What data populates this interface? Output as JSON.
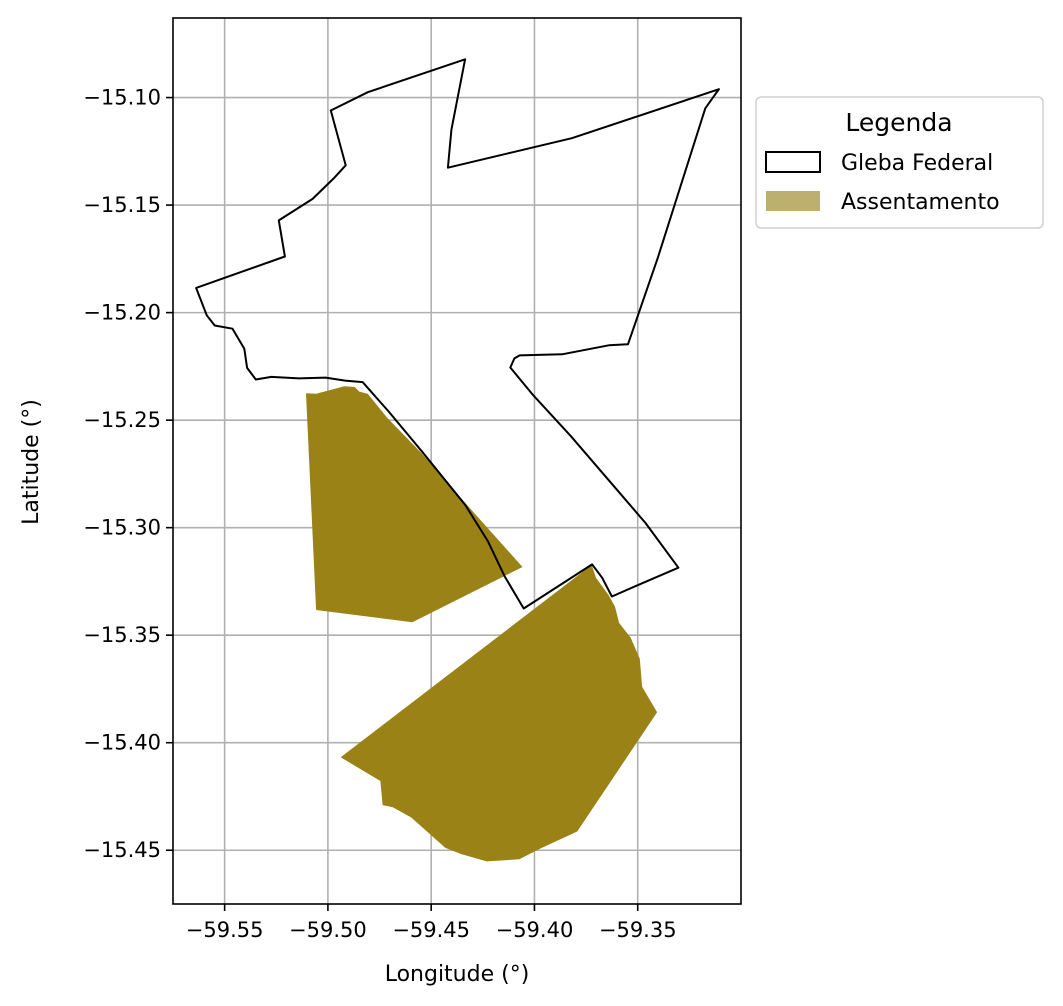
{
  "chart_data": {
    "type": "map",
    "xlabel": "Longitude (°)",
    "ylabel": "Latitude (°)",
    "xlim": [
      -59.575,
      -59.3
    ],
    "ylim": [
      -15.475,
      -15.063
    ],
    "xticks": [
      -59.55,
      -59.5,
      -59.45,
      -59.4,
      -59.35
    ],
    "xtick_labels": [
      "−59.55",
      "−59.50",
      "−59.45",
      "−59.40",
      "−59.35"
    ],
    "yticks": [
      -15.1,
      -15.15,
      -15.2,
      -15.25,
      -15.3,
      -15.35,
      -15.4,
      -15.45
    ],
    "ytick_labels": [
      "−15.10",
      "−15.15",
      "−15.20",
      "−15.25",
      "−15.30",
      "−15.35",
      "−15.40",
      "−15.45"
    ],
    "grid": true,
    "legend": {
      "title": "Legenda",
      "placement": "outside-upper-right",
      "entries": [
        {
          "label": "Gleba Federal",
          "style": "outline",
          "stroke": "#000000",
          "fill": "none"
        },
        {
          "label": "Assentamento",
          "style": "fill",
          "fill": "#bdb06f"
        }
      ]
    },
    "layers": [
      {
        "name": "Gleba Federal",
        "stroke": "#000000",
        "fill": "none",
        "coordinates": [
          [
            -59.5638,
            -15.1885
          ],
          [
            -59.5208,
            -15.1739
          ],
          [
            -59.5238,
            -15.1571
          ],
          [
            -59.5074,
            -15.1471
          ],
          [
            -59.4972,
            -15.1376
          ],
          [
            -59.4914,
            -15.1315
          ],
          [
            -59.4986,
            -15.106
          ],
          [
            -59.4807,
            -15.0975
          ],
          [
            -59.4336,
            -15.0822
          ],
          [
            -59.4402,
            -15.115
          ],
          [
            -59.4419,
            -15.1326
          ],
          [
            -59.3819,
            -15.1189
          ],
          [
            -59.3107,
            -15.0961
          ],
          [
            -59.3173,
            -15.105
          ],
          [
            -59.3403,
            -15.1745
          ],
          [
            -59.3547,
            -15.2147
          ],
          [
            -59.364,
            -15.2152
          ],
          [
            -59.3866,
            -15.2194
          ],
          [
            -59.4072,
            -15.2199
          ],
          [
            -59.4097,
            -15.2213
          ],
          [
            -59.4117,
            -15.2255
          ],
          [
            -59.401,
            -15.238
          ],
          [
            -59.3823,
            -15.2575
          ],
          [
            -59.3586,
            -15.284
          ],
          [
            -59.3463,
            -15.2978
          ],
          [
            -59.3303,
            -15.3186
          ],
          [
            -59.3514,
            -15.3273
          ],
          [
            -59.3625,
            -15.332
          ],
          [
            -59.3672,
            -15.3233
          ],
          [
            -59.3721,
            -15.3171
          ],
          [
            -59.4052,
            -15.3376
          ],
          [
            -59.4145,
            -15.3225
          ],
          [
            -59.4225,
            -15.3064
          ],
          [
            -59.4334,
            -15.2896
          ],
          [
            -59.4541,
            -15.265
          ],
          [
            -59.471,
            -15.2455
          ],
          [
            -59.4832,
            -15.2323
          ],
          [
            -59.4917,
            -15.2316
          ],
          [
            -59.5011,
            -15.2302
          ],
          [
            -59.514,
            -15.2306
          ],
          [
            -59.5274,
            -15.2299
          ],
          [
            -59.5349,
            -15.2311
          ],
          [
            -59.5391,
            -15.2257
          ],
          [
            -59.5405,
            -15.2168
          ],
          [
            -59.5462,
            -15.2075
          ],
          [
            -59.5548,
            -15.206
          ],
          [
            -59.5587,
            -15.2012
          ],
          [
            -59.5638,
            -15.1885
          ]
        ]
      },
      {
        "name": "Assentamento",
        "fill": "#9a8217",
        "stroke": "none",
        "coordinates": [
          [
            -59.5106,
            -15.2375
          ],
          [
            -59.5057,
            -15.3383
          ],
          [
            -59.4591,
            -15.344
          ],
          [
            -59.4058,
            -15.3183
          ],
          [
            -59.4338,
            -15.2882
          ],
          [
            -59.4545,
            -15.2655
          ],
          [
            -59.4712,
            -15.249
          ],
          [
            -59.4807,
            -15.2378
          ],
          [
            -59.4849,
            -15.2367
          ],
          [
            -59.487,
            -15.2346
          ],
          [
            -59.492,
            -15.2342
          ],
          [
            -59.5057,
            -15.2377
          ],
          [
            -59.5106,
            -15.2375
          ]
        ]
      },
      {
        "name": "Assentamento",
        "fill": "#9a8217",
        "stroke": "none",
        "coordinates": [
          [
            -59.3723,
            -15.3173
          ],
          [
            -59.4938,
            -15.4068
          ],
          [
            -59.4746,
            -15.4178
          ],
          [
            -59.4735,
            -15.429
          ],
          [
            -59.4686,
            -15.43
          ],
          [
            -59.4596,
            -15.4348
          ],
          [
            -59.4432,
            -15.4488
          ],
          [
            -59.4354,
            -15.4518
          ],
          [
            -59.4231,
            -15.4552
          ],
          [
            -59.4073,
            -15.4542
          ],
          [
            -59.3979,
            -15.4495
          ],
          [
            -59.3793,
            -15.4413
          ],
          [
            -59.3406,
            -15.3858
          ],
          [
            -59.3479,
            -15.374
          ],
          [
            -59.349,
            -15.361
          ],
          [
            -59.3534,
            -15.3512
          ],
          [
            -59.359,
            -15.3443
          ],
          [
            -59.361,
            -15.3367
          ],
          [
            -59.364,
            -15.3315
          ],
          [
            -59.3702,
            -15.3233
          ],
          [
            -59.3723,
            -15.3173
          ]
        ]
      }
    ]
  }
}
